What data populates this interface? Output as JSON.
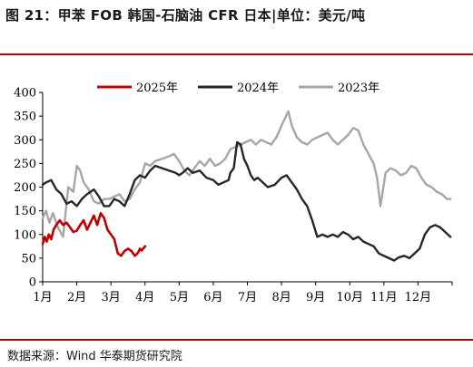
{
  "header": {
    "title": "图 21：甲苯 FOB 韩国-石脑油 CFR 日本|单位：美元/吨"
  },
  "footer": {
    "source": "数据来源：Wind 华泰期货研究院"
  },
  "colors": {
    "accent_rule": "#c00000",
    "series_2025": "#c00000",
    "series_2024": "#262626",
    "series_2023": "#a6a6a6"
  },
  "chart_data": {
    "type": "line",
    "title": "",
    "xlabel": "",
    "ylabel": "",
    "ylim": [
      0,
      400
    ],
    "yticks": [
      0,
      50,
      100,
      150,
      200,
      250,
      300,
      350,
      400
    ],
    "xlim": [
      0,
      12
    ],
    "xticks": [
      "1月",
      "2月",
      "3月",
      "4月",
      "5月",
      "6月",
      "7月",
      "8月",
      "9月",
      "10月",
      "11月",
      "12月"
    ],
    "grid": false,
    "legend": "top-center",
    "series": [
      {
        "name": "2025年",
        "color": "#c00000",
        "x": [
          0.0,
          0.06,
          0.12,
          0.18,
          0.25,
          0.32,
          0.4,
          0.5,
          0.6,
          0.7,
          0.8,
          0.9,
          1.0,
          1.1,
          1.2,
          1.3,
          1.4,
          1.5,
          1.6,
          1.7,
          1.8,
          1.9,
          2.0,
          2.1,
          2.2,
          2.3,
          2.4,
          2.5,
          2.6,
          2.7,
          2.75,
          2.8,
          2.85,
          2.9,
          3.0
        ],
        "y": [
          80,
          95,
          85,
          100,
          90,
          110,
          120,
          130,
          120,
          125,
          115,
          105,
          108,
          120,
          130,
          110,
          125,
          140,
          120,
          145,
          135,
          110,
          100,
          90,
          60,
          55,
          65,
          70,
          65,
          55,
          58,
          62,
          70,
          66,
          75
        ]
      },
      {
        "name": "2024年",
        "color": "#262626",
        "x": [
          0.0,
          0.1,
          0.25,
          0.4,
          0.55,
          0.7,
          0.85,
          1.0,
          1.15,
          1.3,
          1.5,
          1.65,
          1.8,
          1.95,
          2.1,
          2.25,
          2.4,
          2.55,
          2.7,
          2.85,
          3.0,
          3.15,
          3.3,
          3.5,
          3.7,
          3.9,
          4.0,
          4.1,
          4.25,
          4.4,
          4.6,
          4.8,
          5.0,
          5.15,
          5.3,
          5.45,
          5.5,
          5.6,
          5.7,
          5.8,
          5.9,
          6.0,
          6.1,
          6.2,
          6.3,
          6.45,
          6.6,
          6.8,
          7.0,
          7.15,
          7.3,
          7.45,
          7.6,
          7.75,
          7.9,
          8.05,
          8.2,
          8.35,
          8.5,
          8.65,
          8.8,
          8.95,
          9.1,
          9.25,
          9.4,
          9.55,
          9.7,
          9.85,
          10.0,
          10.15,
          10.3,
          10.45,
          10.6,
          10.75,
          10.9,
          11.05,
          11.2,
          11.35,
          11.5,
          11.65,
          11.8,
          11.95
        ],
        "y": [
          205,
          210,
          215,
          195,
          185,
          165,
          170,
          160,
          175,
          185,
          195,
          180,
          160,
          160,
          175,
          170,
          160,
          185,
          215,
          225,
          220,
          235,
          245,
          240,
          235,
          230,
          225,
          230,
          240,
          230,
          235,
          220,
          215,
          205,
          210,
          215,
          230,
          240,
          295,
          290,
          260,
          245,
          225,
          215,
          220,
          210,
          200,
          205,
          220,
          225,
          210,
          195,
          175,
          160,
          130,
          95,
          100,
          95,
          100,
          95,
          105,
          100,
          90,
          95,
          85,
          80,
          75,
          60,
          55,
          50,
          45,
          52,
          55,
          50,
          60,
          70,
          100,
          115,
          120,
          115,
          105,
          95
        ]
      },
      {
        "name": "2023年",
        "color": "#a6a6a6",
        "x": [
          0.0,
          0.1,
          0.2,
          0.3,
          0.45,
          0.6,
          0.75,
          0.9,
          1.0,
          1.1,
          1.2,
          1.35,
          1.5,
          1.65,
          1.8,
          1.95,
          2.1,
          2.25,
          2.4,
          2.55,
          2.7,
          2.85,
          3.0,
          3.15,
          3.3,
          3.5,
          3.7,
          3.85,
          4.0,
          4.15,
          4.3,
          4.45,
          4.6,
          4.75,
          4.9,
          5.05,
          5.2,
          5.35,
          5.5,
          5.65,
          5.8,
          5.95,
          6.1,
          6.25,
          6.4,
          6.55,
          6.7,
          6.85,
          7.0,
          7.1,
          7.2,
          7.3,
          7.45,
          7.6,
          7.75,
          7.9,
          8.05,
          8.2,
          8.35,
          8.5,
          8.65,
          8.8,
          8.95,
          9.1,
          9.25,
          9.4,
          9.55,
          9.7,
          9.8,
          9.9,
          10.05,
          10.2,
          10.35,
          10.5,
          10.65,
          10.8,
          10.95,
          11.1,
          11.25,
          11.4,
          11.55,
          11.7,
          11.85,
          11.95
        ],
        "y": [
          135,
          150,
          125,
          145,
          115,
          95,
          200,
          190,
          245,
          235,
          210,
          195,
          170,
          165,
          175,
          175,
          180,
          185,
          170,
          175,
          195,
          210,
          250,
          245,
          255,
          260,
          265,
          270,
          255,
          235,
          225,
          240,
          255,
          245,
          260,
          245,
          250,
          260,
          280,
          285,
          290,
          295,
          300,
          290,
          300,
          295,
          290,
          305,
          330,
          345,
          360,
          330,
          305,
          295,
          290,
          300,
          305,
          310,
          315,
          300,
          290,
          300,
          310,
          325,
          320,
          290,
          270,
          250,
          220,
          160,
          230,
          240,
          235,
          225,
          230,
          245,
          240,
          220,
          205,
          200,
          190,
          185,
          175,
          175
        ]
      }
    ]
  }
}
